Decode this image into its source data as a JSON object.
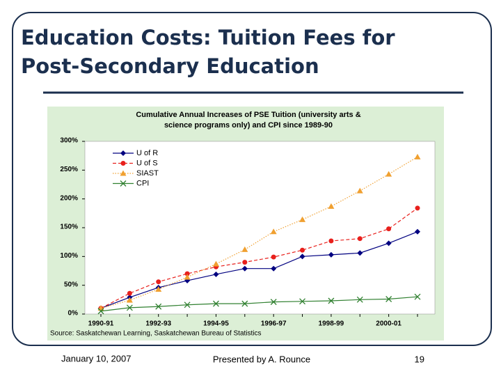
{
  "title": "Education Costs: Tuition Fees for",
  "title_line2": "Post-Secondary Education",
  "footer": {
    "date": "January 10, 2007",
    "presenter": "Presented by A. Rounce",
    "page": "19"
  },
  "chart_data": {
    "type": "line",
    "title": "Cumulative Annual Increases of PSE Tuition (university arts &",
    "title_line2": "science programs only) and CPI since 1989-90",
    "source": "Source:   Saskatchewan Learning, Saskatchewan Bureau of Statistics",
    "categories": [
      "1990-91",
      null,
      "1992-93",
      null,
      "1994-95",
      null,
      "1996-97",
      null,
      "1998-99",
      null,
      "2000-01",
      null
    ],
    "ylim": [
      0,
      300
    ],
    "yticks": [
      {
        "value": 0,
        "label": "0%"
      },
      {
        "value": 50,
        "label": "50%"
      },
      {
        "value": 100,
        "label": "100%"
      },
      {
        "value": 150,
        "label": "150%"
      },
      {
        "value": 200,
        "label": "200%"
      },
      {
        "value": 250,
        "label": "250%"
      },
      {
        "value": 300,
        "label": "300%"
      }
    ],
    "legend": "upper left",
    "series": [
      {
        "name": "U of R",
        "color": "#000080",
        "marker": "diamond",
        "dash": "solid",
        "values": [
          10,
          29,
          46,
          58,
          69,
          79,
          79,
          100,
          103,
          106,
          123,
          143
        ]
      },
      {
        "name": "U of S",
        "color": "#e8201c",
        "marker": "circle",
        "dash": "dashed",
        "values": [
          10,
          36,
          56,
          70,
          82,
          90,
          99,
          111,
          127,
          131,
          148,
          184
        ]
      },
      {
        "name": "SIAST",
        "color": "#f0a030",
        "marker": "triangle",
        "dash": "dotted",
        "values": [
          10,
          24,
          43,
          64,
          87,
          112,
          143,
          164,
          187,
          214,
          243,
          273
        ]
      },
      {
        "name": "CPI",
        "color": "#308030",
        "marker": "x",
        "dash": "solid",
        "values": [
          5,
          11,
          13,
          16,
          18,
          18,
          21,
          22,
          23,
          25,
          26,
          30
        ]
      }
    ]
  }
}
